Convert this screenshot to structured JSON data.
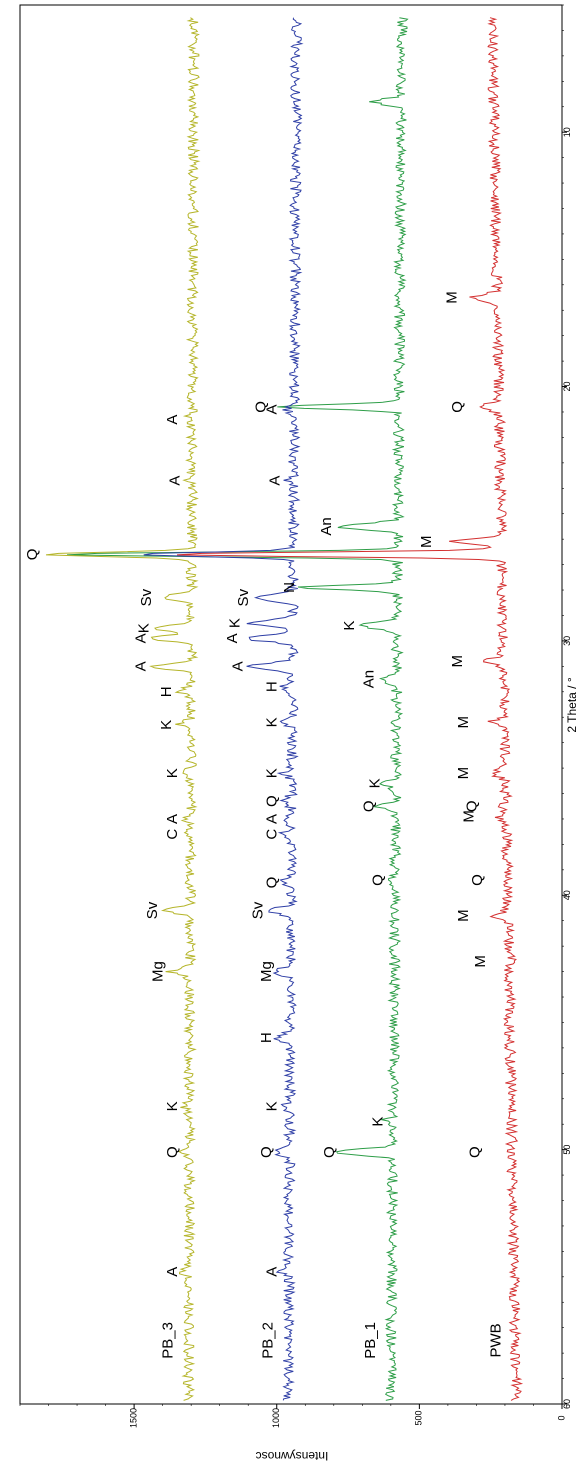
{
  "chart_data": {
    "type": "line",
    "title": "",
    "xlabel": "2 Theta / °",
    "ylabel": "Intensywnosc",
    "xlim": [
      5,
      60
    ],
    "ylim": [
      0,
      1900
    ],
    "x_ticks": [
      10,
      20,
      30,
      40,
      50,
      60
    ],
    "y_ticks": [
      0,
      500,
      1000,
      1500
    ],
    "grid": false,
    "series": [
      {
        "name": "PWB",
        "color": "#d32f2f",
        "baseline": 245,
        "end_level": 160,
        "peaks": [
          {
            "x": 16.5,
            "y": 330,
            "label": "M"
          },
          {
            "x": 20.8,
            "y": 310,
            "label": "Q"
          },
          {
            "x": 26.1,
            "y": 420,
            "label": "M"
          },
          {
            "x": 26.6,
            "y": 1400,
            "label": ""
          },
          {
            "x": 30.8,
            "y": 310,
            "label": "M"
          },
          {
            "x": 33.2,
            "y": 290,
            "label": "M"
          },
          {
            "x": 35.2,
            "y": 290,
            "label": "M"
          },
          {
            "x": 36.9,
            "y": 270,
            "label": "M"
          },
          {
            "x": 36.5,
            "y": 260,
            "label": "Q"
          },
          {
            "x": 39.4,
            "y": 240,
            "label": "Q"
          },
          {
            "x": 40.8,
            "y": 290,
            "label": "M"
          },
          {
            "x": 42.6,
            "y": 230,
            "label": "M"
          },
          {
            "x": 50.1,
            "y": 250,
            "label": "Q"
          }
        ]
      },
      {
        "name": "PB_1",
        "color": "#2e9e48",
        "baseline": 560,
        "end_level": 600,
        "peaks": [
          {
            "x": 8.8,
            "y": 660,
            "label": ""
          },
          {
            "x": 20.8,
            "y": 1000,
            "label": "Q"
          },
          {
            "x": 25.5,
            "y": 770,
            "label": "An"
          },
          {
            "x": 26.6,
            "y": 1750,
            "label": ""
          },
          {
            "x": 27.9,
            "y": 900,
            "label": "N"
          },
          {
            "x": 29.4,
            "y": 690,
            "label": "K"
          },
          {
            "x": 31.5,
            "y": 620,
            "label": "An"
          },
          {
            "x": 35.6,
            "y": 600,
            "label": "K"
          },
          {
            "x": 36.5,
            "y": 620,
            "label": "Q"
          },
          {
            "x": 39.4,
            "y": 590,
            "label": "Q"
          },
          {
            "x": 48.9,
            "y": 590,
            "label": "K"
          },
          {
            "x": 50.1,
            "y": 760,
            "label": "Q"
          }
        ]
      },
      {
        "name": "PB_2",
        "color": "#2f3fa6",
        "baseline": 930,
        "end_level": 960,
        "peaks": [
          {
            "x": 20.9,
            "y": 960,
            "label": "A"
          },
          {
            "x": 23.7,
            "y": 950,
            "label": "A"
          },
          {
            "x": 26.6,
            "y": 1480,
            "label": ""
          },
          {
            "x": 28.3,
            "y": 1060,
            "label": "Sv"
          },
          {
            "x": 29.3,
            "y": 1090,
            "label": "K"
          },
          {
            "x": 29.9,
            "y": 1100,
            "label": "A"
          },
          {
            "x": 31.0,
            "y": 1080,
            "label": "A"
          },
          {
            "x": 31.8,
            "y": 960,
            "label": "H"
          },
          {
            "x": 33.2,
            "y": 960,
            "label": "K"
          },
          {
            "x": 35.2,
            "y": 960,
            "label": "K"
          },
          {
            "x": 36.3,
            "y": 960,
            "label": "Q"
          },
          {
            "x": 37.0,
            "y": 960,
            "label": "A"
          },
          {
            "x": 37.6,
            "y": 960,
            "label": "C"
          },
          {
            "x": 39.5,
            "y": 960,
            "label": "Q"
          },
          {
            "x": 40.6,
            "y": 1010,
            "label": "Sv"
          },
          {
            "x": 43.0,
            "y": 980,
            "label": "Mg"
          },
          {
            "x": 45.6,
            "y": 980,
            "label": "H"
          },
          {
            "x": 48.3,
            "y": 960,
            "label": "K"
          },
          {
            "x": 50.1,
            "y": 980,
            "label": "Q"
          },
          {
            "x": 54.8,
            "y": 960,
            "label": "A"
          }
        ]
      },
      {
        "name": "PB_3",
        "color": "#b5b52a",
        "baseline": 1290,
        "end_level": 1310,
        "peaks": [
          {
            "x": 21.3,
            "y": 1310,
            "label": "A"
          },
          {
            "x": 23.7,
            "y": 1300,
            "label": "A"
          },
          {
            "x": 26.6,
            "y": 1800,
            "label": "Q"
          },
          {
            "x": 28.3,
            "y": 1400,
            "label": "Sv"
          },
          {
            "x": 29.5,
            "y": 1410,
            "label": "K"
          },
          {
            "x": 29.9,
            "y": 1420,
            "label": "A"
          },
          {
            "x": 31.0,
            "y": 1420,
            "label": "A"
          },
          {
            "x": 32.0,
            "y": 1330,
            "label": "H"
          },
          {
            "x": 33.3,
            "y": 1330,
            "label": "K"
          },
          {
            "x": 35.2,
            "y": 1310,
            "label": "K"
          },
          {
            "x": 37.0,
            "y": 1310,
            "label": "A"
          },
          {
            "x": 37.6,
            "y": 1310,
            "label": "C"
          },
          {
            "x": 40.6,
            "y": 1380,
            "label": "Sv"
          },
          {
            "x": 43.0,
            "y": 1360,
            "label": "Mg"
          },
          {
            "x": 48.3,
            "y": 1310,
            "label": "K"
          },
          {
            "x": 50.1,
            "y": 1310,
            "label": "Q"
          },
          {
            "x": 54.8,
            "y": 1310,
            "label": "A"
          }
        ]
      }
    ]
  }
}
